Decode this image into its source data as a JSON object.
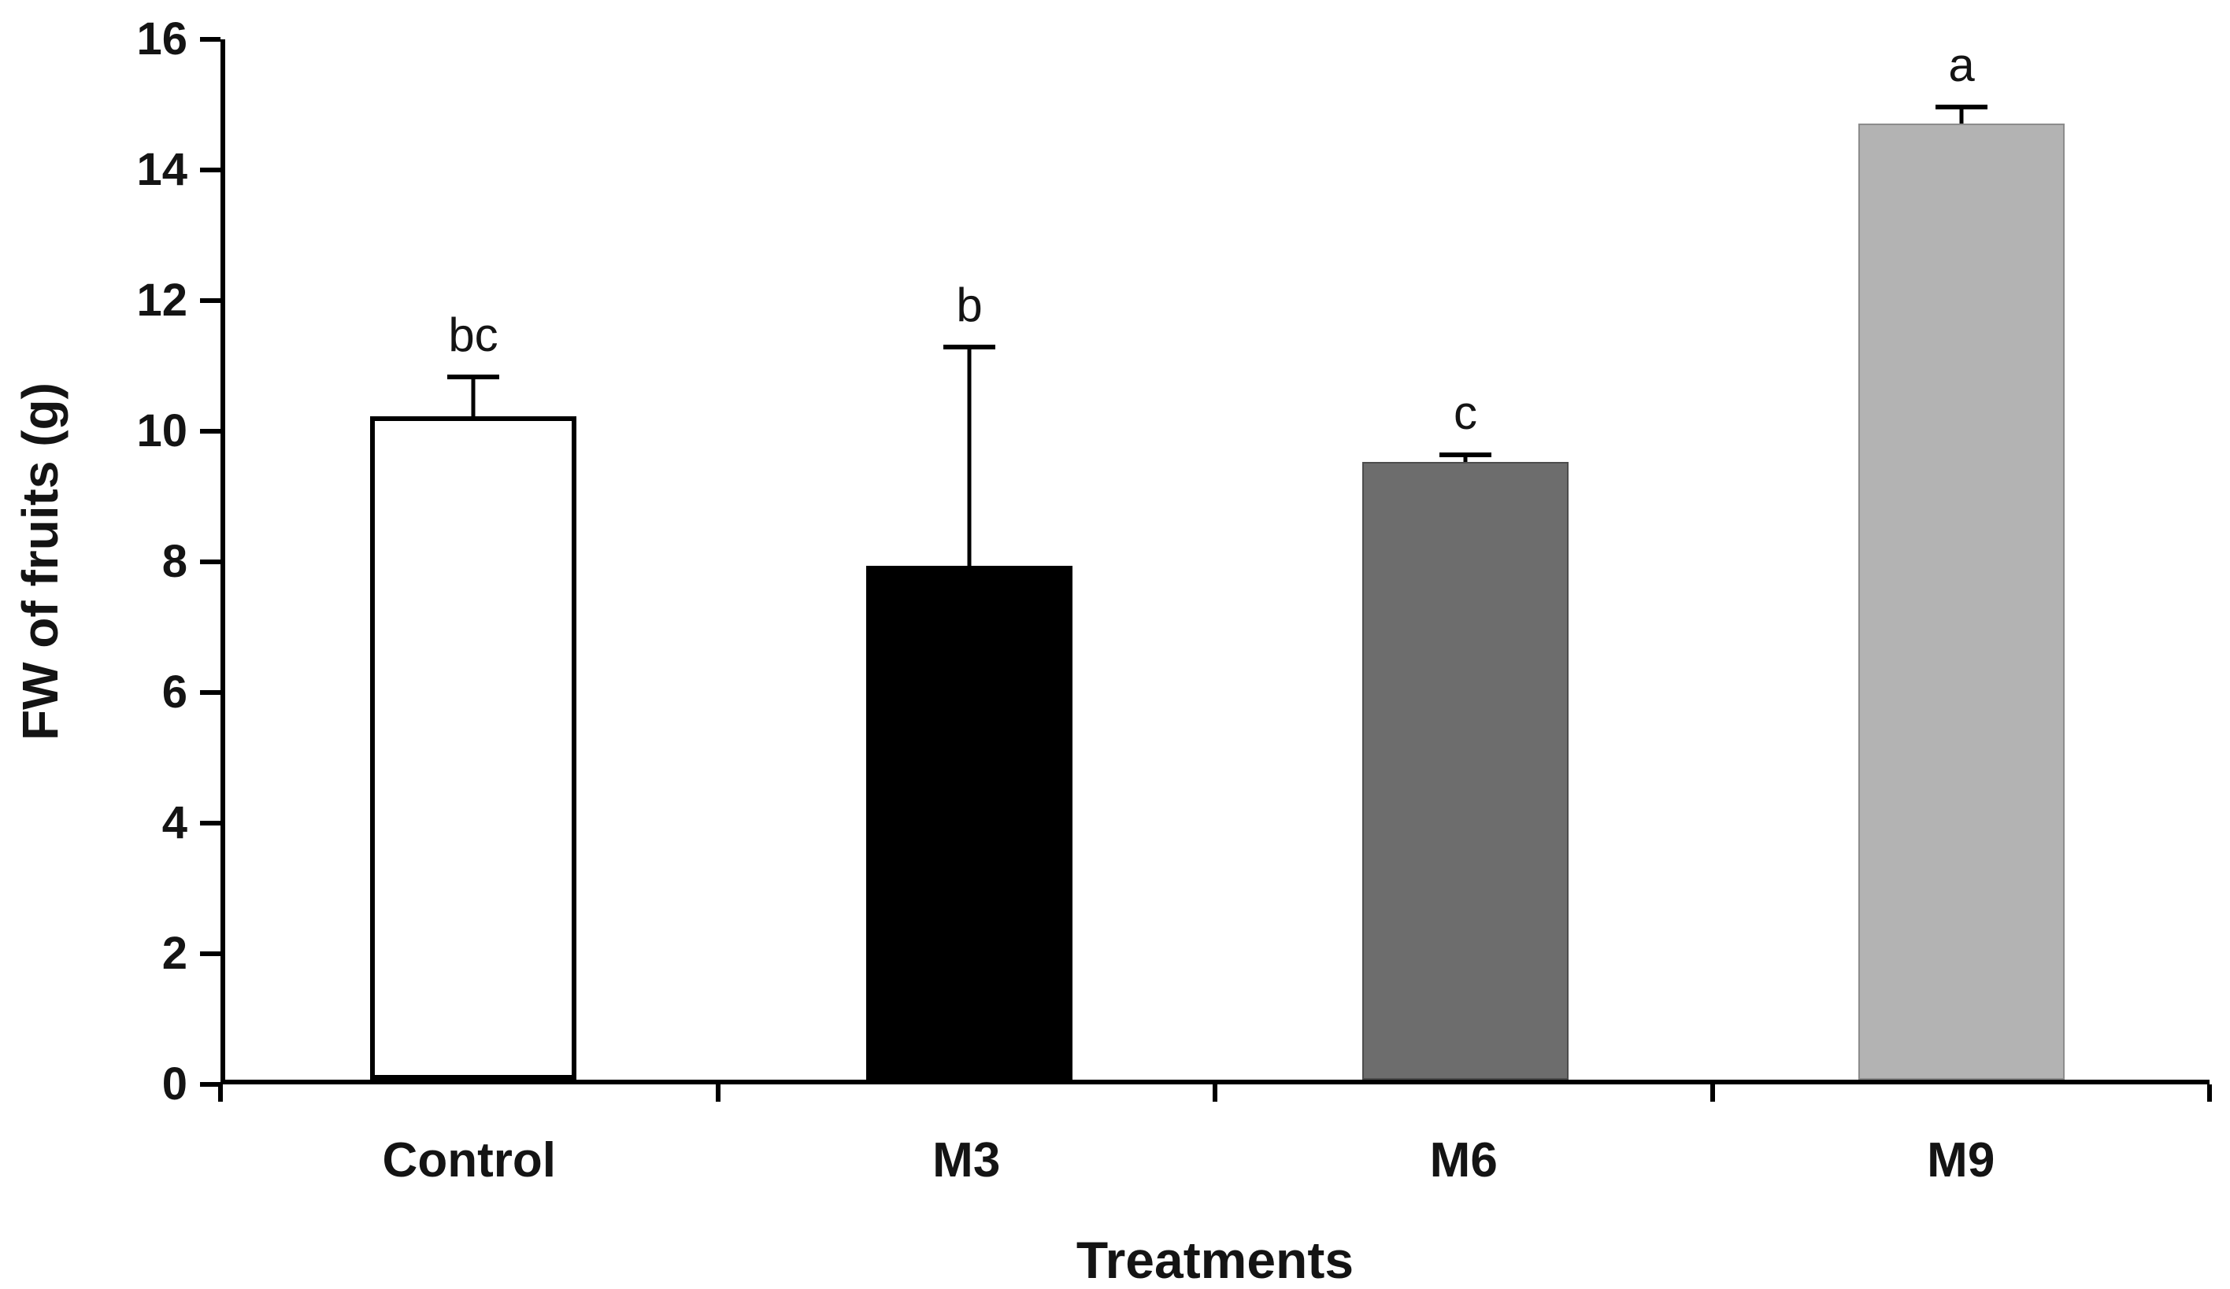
{
  "chart_data": {
    "type": "bar",
    "title": "",
    "xlabel": "Treatments",
    "ylabel": "FW of fruits (g)",
    "categories": [
      "Control",
      "M3",
      "M6",
      "M9"
    ],
    "values": [
      10.2,
      7.9,
      9.5,
      14.7
    ],
    "errors_plus": [
      0.65,
      3.4,
      0.15,
      0.3
    ],
    "sig_letters": [
      "bc",
      "b",
      "c",
      "a"
    ],
    "bar_fill_colors": [
      "#ffffff",
      "#000000",
      "#6d6d6d",
      "#b3b3b3"
    ],
    "bar_border_colors": [
      "#000000",
      "#000000",
      "#4d4d4d",
      "#8c8c8c"
    ],
    "bar_border_widths_px": [
      6,
      0,
      2,
      2
    ],
    "ylim": [
      0,
      16
    ],
    "yticks": [
      0,
      2,
      4,
      6,
      8,
      10,
      12,
      14,
      16
    ],
    "grid": false,
    "legend": "none",
    "error_bar_direction": "plus",
    "axis_color": "#000000"
  }
}
